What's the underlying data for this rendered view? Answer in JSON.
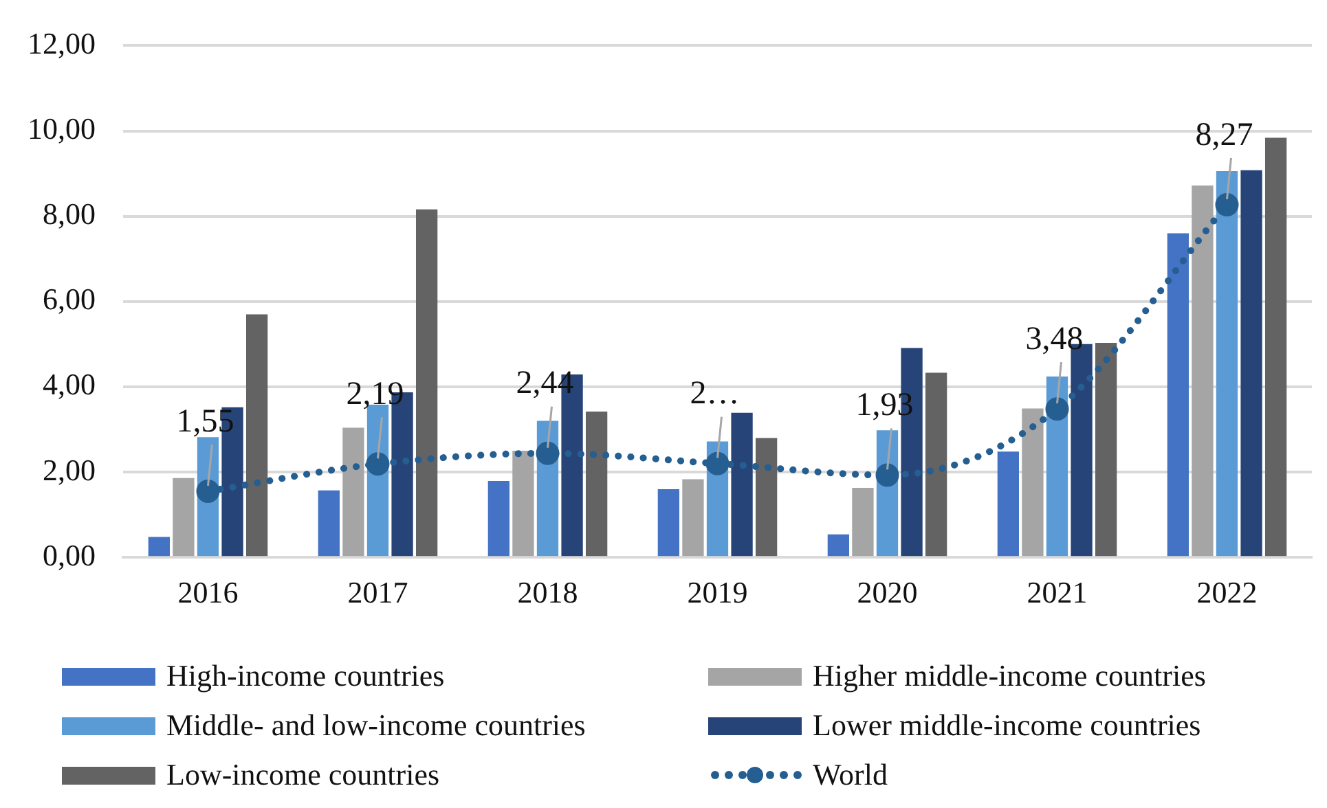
{
  "chart_data": {
    "type": "bar",
    "categories": [
      "2016",
      "2017",
      "2018",
      "2019",
      "2020",
      "2021",
      "2022"
    ],
    "series": [
      {
        "name": "High-income countries",
        "color": "#4472c4",
        "values": [
          0.48,
          1.57,
          1.79,
          1.6,
          0.54,
          2.48,
          7.6
        ]
      },
      {
        "name": "Higher middle-income countries",
        "color": "#a5a5a5",
        "values": [
          1.86,
          3.04,
          2.5,
          1.83,
          1.63,
          3.49,
          8.72
        ]
      },
      {
        "name": "Middle- and low-income countries",
        "color": "#5b9bd5",
        "values": [
          2.82,
          3.58,
          3.2,
          2.72,
          2.98,
          4.24,
          9.06
        ]
      },
      {
        "name": "Lower middle-income countries",
        "color": "#264478",
        "values": [
          3.52,
          3.87,
          4.29,
          3.39,
          4.91,
          5.0,
          9.08
        ]
      },
      {
        "name": "Low-income countries",
        "color": "#636363",
        "values": [
          5.7,
          8.16,
          3.42,
          2.8,
          4.33,
          5.03,
          9.84
        ]
      },
      {
        "name": "World",
        "type": "line",
        "color": "#255e91",
        "line_style": "dotted",
        "marker": "circle",
        "values": [
          1.55,
          2.19,
          2.44,
          2.2,
          1.93,
          3.48,
          8.27
        ],
        "value_labels": [
          "1,55",
          "2,19",
          "2,44",
          "2…",
          "1,93",
          "3,48",
          "8,27"
        ]
      }
    ],
    "ylim": [
      0,
      12
    ],
    "yticks": [
      {
        "value": 0,
        "label": "0,00"
      },
      {
        "value": 2,
        "label": "2,00"
      },
      {
        "value": 4,
        "label": "4,00"
      },
      {
        "value": 6,
        "label": "6,00"
      },
      {
        "value": 8,
        "label": "8,00"
      },
      {
        "value": 10,
        "label": "10,00"
      },
      {
        "value": 12,
        "label": "12,00"
      }
    ],
    "grid": "y",
    "legend": "bottom"
  }
}
